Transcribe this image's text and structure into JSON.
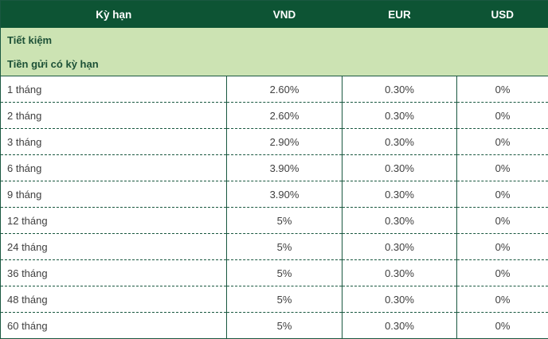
{
  "colors": {
    "header_bg": "#0d5434",
    "section_bg": "#cce3b3",
    "border": "#1a5840",
    "header_text": "#ffffff",
    "section_text": "#1d5137",
    "body_text": "#404040"
  },
  "table": {
    "headers": {
      "term": "Kỳ hạn",
      "vnd": "VND",
      "eur": "EUR",
      "usd": "USD"
    },
    "sections": {
      "s0": "Tiết kiệm",
      "s1": "Tiền gửi có kỳ hạn"
    },
    "rows": [
      {
        "term": "1 tháng",
        "vnd": "2.60%",
        "eur": "0.30%",
        "usd": "0%"
      },
      {
        "term": "2 tháng",
        "vnd": "2.60%",
        "eur": "0.30%",
        "usd": "0%"
      },
      {
        "term": "3 tháng",
        "vnd": "2.90%",
        "eur": "0.30%",
        "usd": "0%"
      },
      {
        "term": "6 tháng",
        "vnd": "3.90%",
        "eur": "0.30%",
        "usd": "0%"
      },
      {
        "term": "9 tháng",
        "vnd": "3.90%",
        "eur": "0.30%",
        "usd": "0%"
      },
      {
        "term": "12 tháng",
        "vnd": "5%",
        "eur": "0.30%",
        "usd": "0%"
      },
      {
        "term": "24 tháng",
        "vnd": "5%",
        "eur": "0.30%",
        "usd": "0%"
      },
      {
        "term": "36 tháng",
        "vnd": "5%",
        "eur": "0.30%",
        "usd": "0%"
      },
      {
        "term": "48 tháng",
        "vnd": "5%",
        "eur": "0.30%",
        "usd": "0%"
      },
      {
        "term": "60 tháng",
        "vnd": "5%",
        "eur": "0.30%",
        "usd": "0%"
      }
    ]
  }
}
